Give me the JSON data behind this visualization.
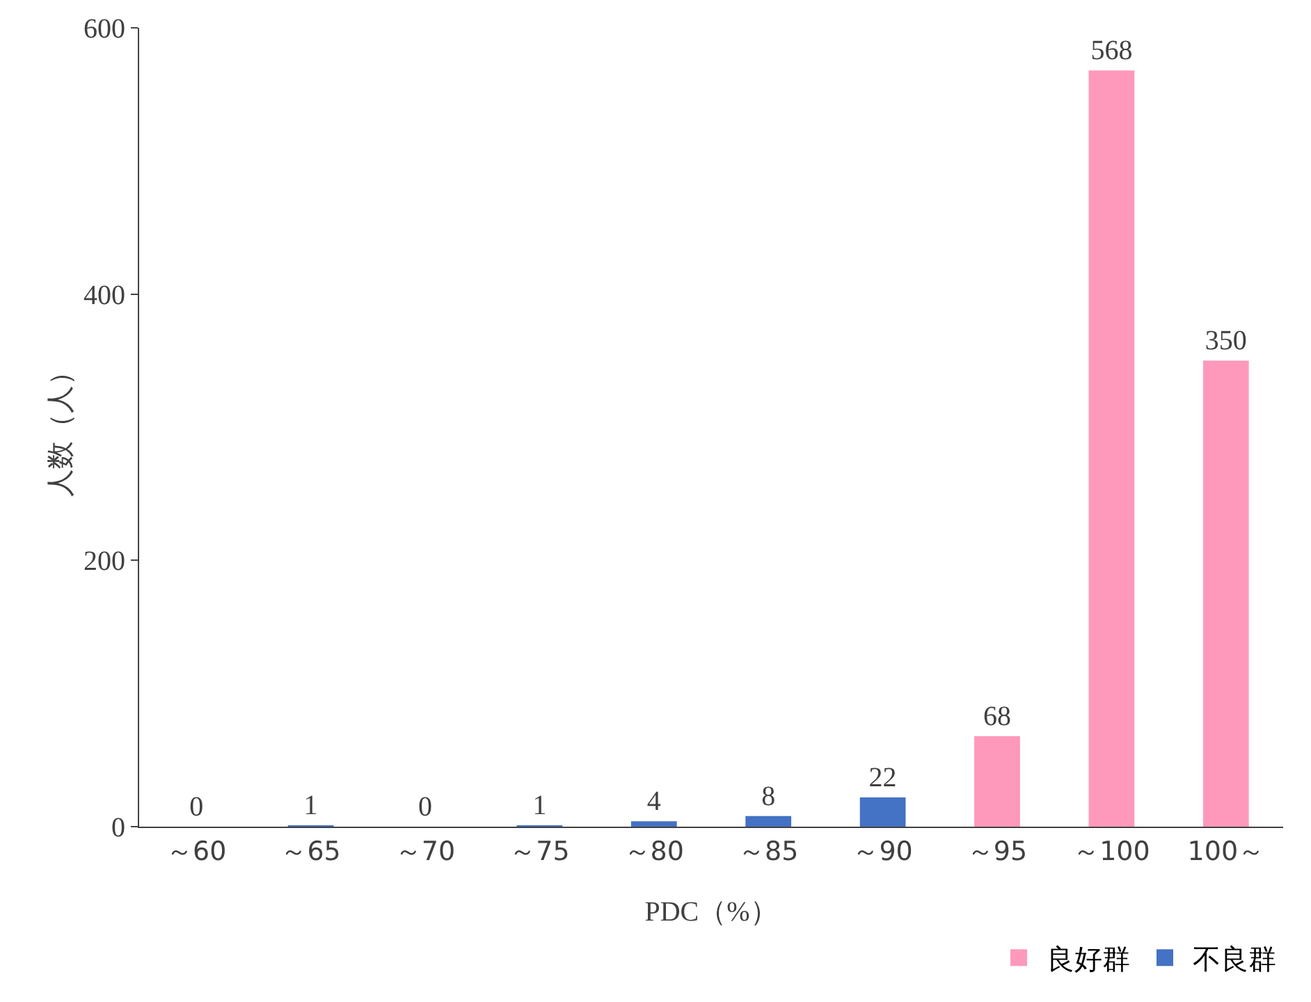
{
  "chart_data": {
    "type": "bar",
    "xlabel": "PDC（%）",
    "ylabel": "人数（人）",
    "categories": [
      "～60",
      "～65",
      "～70",
      "～75",
      "～80",
      "～85",
      "～90",
      "～95",
      "～100",
      "100～"
    ],
    "series": [
      {
        "name": "良好群",
        "color": "#ff99bb",
        "values": [
          null,
          null,
          null,
          null,
          null,
          null,
          null,
          68,
          568,
          350
        ]
      },
      {
        "name": "不良群",
        "color": "#4472c4",
        "values": [
          0,
          1,
          0,
          1,
          4,
          8,
          22,
          null,
          null,
          null
        ]
      }
    ],
    "ylim": [
      0,
      600
    ],
    "yticks": [
      0,
      200,
      400,
      600
    ],
    "data_labels": true,
    "grid": false,
    "legend": "bottom right"
  }
}
